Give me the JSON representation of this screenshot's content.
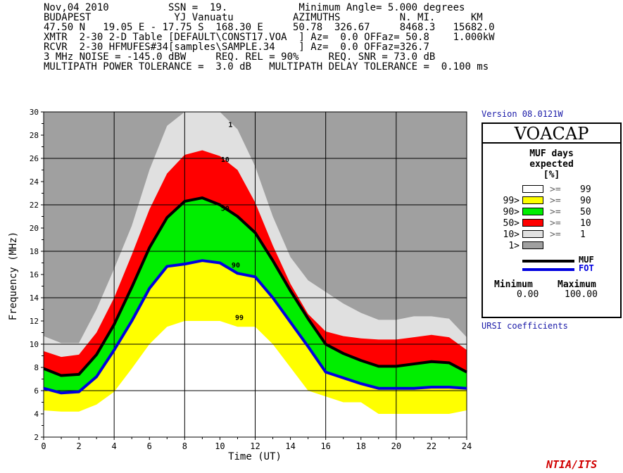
{
  "header": {
    "line1": "Nov,04 2010          SSN =  19.            Minimum Angle= 5.000 degrees",
    "line2": "BUDAPEST              YJ Vanuatu          AZIMUTHS          N. MI.      KM",
    "line3": "47.50 N   19.05 E - 17.75 S  168.30 E     50.78  326.67     8468.3   15682.0",
    "line4": "XMTR  2-30 2-D Table [DEFAULT\\CONST17.VOA  ] Az=  0.0 OFFaz= 50.8    1.000kW",
    "line5": "RCVR  2-30 HFMUFES#34[samples\\SAMPLE.34    ] Az=  0.0 OFFaz=326.7",
    "line6": "3 MHz NOISE = -145.0 dBW     REQ. REL = 90%     REQ. SNR = 73.0 dB",
    "line7": "MULTIPATH POWER TOLERANCE =  3.0 dB   MULTIPATH DELAY TOLERANCE =  0.100 ms"
  },
  "version": "Version 08.0121W",
  "ursi": "URSI coefficients",
  "footer": "NTIA/ITS",
  "legend": {
    "title": "VOACAP",
    "subtitle1": "MUF days",
    "subtitle2": "expected",
    "subtitle3": "[%]",
    "rows": [
      {
        "left": "",
        "swatch": "#ffffff",
        "ge": ">=",
        "right": "99"
      },
      {
        "left": "99>",
        "swatch": "#ffff00",
        "ge": ">=",
        "right": "90"
      },
      {
        "left": "90>",
        "swatch": "#00ee00",
        "ge": ">=",
        "right": "50"
      },
      {
        "left": "50>",
        "swatch": "#ff0000",
        "ge": ">=",
        "right": "10"
      },
      {
        "left": "10>",
        "swatch": "#e0e0e0",
        "ge": ">=",
        "right": "1"
      },
      {
        "left": "1>",
        "swatch": "#a0a0a0",
        "ge": "",
        "right": ""
      }
    ],
    "muf_label": "MUF",
    "fot_label": "FOT",
    "min_label": "Minimum",
    "max_label": "Maximum",
    "min_value": "0.00",
    "max_value": "100.00"
  },
  "chart_data": {
    "type": "area",
    "xlabel": "Time (UT)",
    "ylabel": "Frequency (MHz)",
    "xlim": [
      0,
      24
    ],
    "ylim": [
      2,
      30
    ],
    "xticks": [
      0,
      2,
      4,
      6,
      8,
      10,
      12,
      14,
      16,
      18,
      20,
      22,
      24
    ],
    "yticks": [
      2,
      4,
      6,
      8,
      10,
      12,
      14,
      16,
      18,
      20,
      22,
      24,
      26,
      28,
      30
    ],
    "grid": true,
    "colors": {
      "background": "#a0a0a0",
      "band_1": "#e0e0e0",
      "band_10": "#ff0000",
      "band_50": "#00ee00",
      "band_90": "#ffff00",
      "band_99": "#ffffff",
      "muf": "#000000",
      "fot": "#0000e0"
    },
    "x": [
      0,
      1,
      2,
      3,
      4,
      5,
      6,
      7,
      8,
      9,
      10,
      11,
      12,
      13,
      14,
      15,
      16,
      17,
      18,
      19,
      20,
      21,
      22,
      23,
      24
    ],
    "bands": [
      {
        "name": "1",
        "upper": [
          10.7,
          10.1,
          10.1,
          13.0,
          16.5,
          20.2,
          25.0,
          28.8,
          30.0,
          30.0,
          30.0,
          28.5,
          25.3,
          21.0,
          17.5,
          15.5,
          14.5,
          13.5,
          12.7,
          12.1,
          12.1,
          12.4,
          12.4,
          12.2,
          10.6
        ]
      },
      {
        "name": "10",
        "upper": [
          9.4,
          8.9,
          9.1,
          11.0,
          14.0,
          17.7,
          21.6,
          24.7,
          26.3,
          26.7,
          26.2,
          25.0,
          22.2,
          18.5,
          15.2,
          12.6,
          11.1,
          10.7,
          10.5,
          10.4,
          10.4,
          10.6,
          10.8,
          10.6,
          9.5
        ]
      },
      {
        "name": "50",
        "upper": [
          7.9,
          7.3,
          7.4,
          9.1,
          11.7,
          14.9,
          18.3,
          20.9,
          22.3,
          22.6,
          22.0,
          21.0,
          19.6,
          17.2,
          14.6,
          12.2,
          10.0,
          9.2,
          8.6,
          8.1,
          8.1,
          8.3,
          8.5,
          8.4,
          7.6
        ]
      },
      {
        "name": "90",
        "upper": [
          6.2,
          5.8,
          5.9,
          7.2,
          9.5,
          12.0,
          14.8,
          16.7,
          16.9,
          17.2,
          17.0,
          16.1,
          15.8,
          14.0,
          11.9,
          9.8,
          7.6,
          7.1,
          6.6,
          6.2,
          6.2,
          6.2,
          6.3,
          6.3,
          6.2
        ]
      },
      {
        "name": "99",
        "upper": [
          4.3,
          4.2,
          4.2,
          4.8,
          5.9,
          7.9,
          10.0,
          11.5,
          12.0,
          12.0,
          12.0,
          11.5,
          11.5,
          10.0,
          8.0,
          6.0,
          5.5,
          5.0,
          5.0,
          4.0,
          4.0,
          4.0,
          4.0,
          4.0,
          4.3
        ]
      }
    ],
    "series": [
      {
        "name": "MUF",
        "values": [
          7.9,
          7.3,
          7.4,
          9.1,
          11.7,
          14.9,
          18.3,
          20.9,
          22.3,
          22.6,
          22.0,
          21.0,
          19.6,
          17.2,
          14.6,
          12.2,
          10.0,
          9.2,
          8.6,
          8.1,
          8.1,
          8.3,
          8.5,
          8.4,
          7.6
        ]
      },
      {
        "name": "FOT",
        "values": [
          6.2,
          5.8,
          5.9,
          7.2,
          9.5,
          12.0,
          14.8,
          16.7,
          16.9,
          17.2,
          17.0,
          16.1,
          15.8,
          14.0,
          11.9,
          9.8,
          7.6,
          7.1,
          6.6,
          6.2,
          6.2,
          6.2,
          6.3,
          6.3,
          6.2
        ]
      }
    ],
    "contour_labels": [
      {
        "text": "1",
        "x": 10.6,
        "y": 28.7
      },
      {
        "text": "10",
        "x": 10.3,
        "y": 25.7
      },
      {
        "text": "50",
        "x": 10.3,
        "y": 21.5
      },
      {
        "text": "90",
        "x": 10.9,
        "y": 16.6
      },
      {
        "text": "99",
        "x": 11.1,
        "y": 12.1
      }
    ]
  }
}
